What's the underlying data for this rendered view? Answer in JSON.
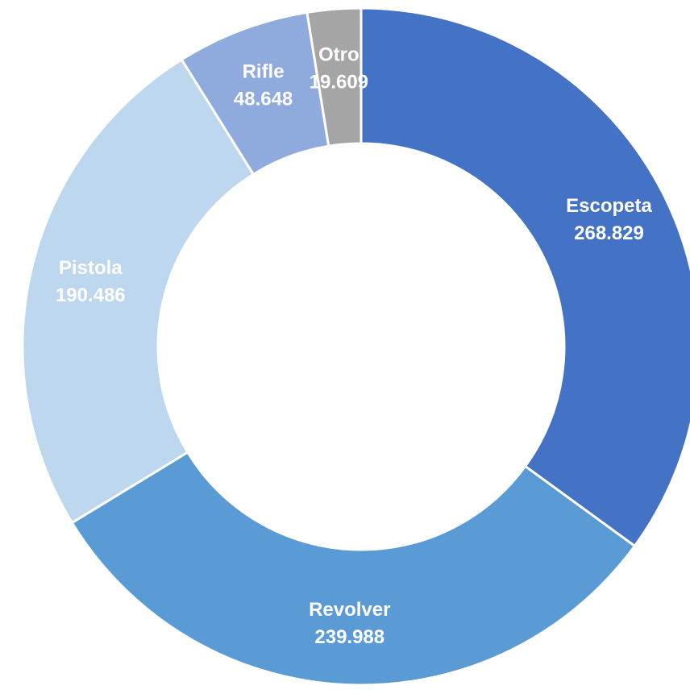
{
  "chart_data": {
    "type": "donut",
    "categories": [
      "Escopeta",
      "Revolver",
      "Pistola",
      "Rifle",
      "Otro"
    ],
    "values": [
      268829,
      239988,
      190486,
      48648,
      19609
    ],
    "value_labels": [
      "268.829",
      "239.988",
      "190.486",
      "48.648",
      "19.609"
    ],
    "colors": [
      "#4472c4",
      "#5b9bd5",
      "#bdd7ee",
      "#8faadc",
      "#a5a5a5"
    ]
  }
}
